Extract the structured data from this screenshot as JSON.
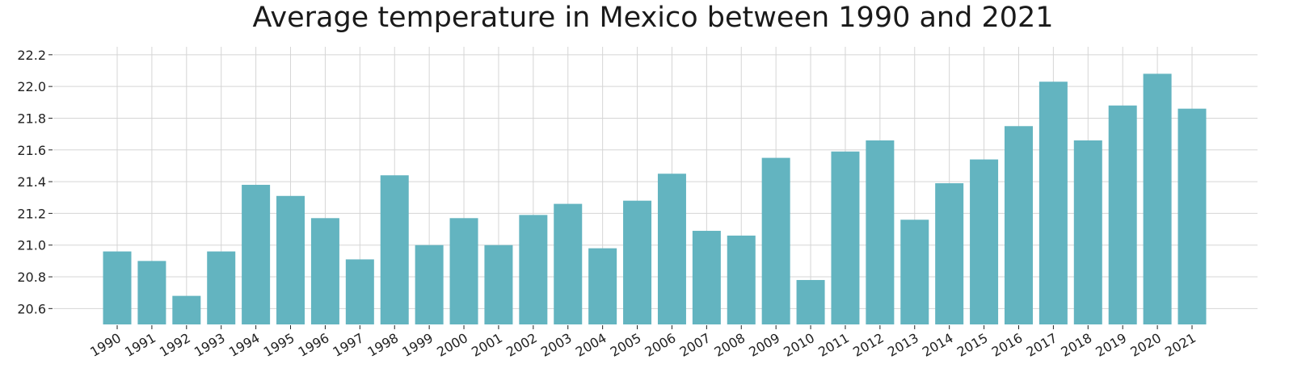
{
  "chart_data": {
    "type": "bar",
    "title": "Average temperature in Mexico between 1990 and 2021",
    "xlabel": "",
    "ylabel": "",
    "categories": [
      "1990",
      "1991",
      "1992",
      "1993",
      "1994",
      "1995",
      "1996",
      "1997",
      "1998",
      "1999",
      "2000",
      "2001",
      "2002",
      "2003",
      "2004",
      "2005",
      "2006",
      "2007",
      "2008",
      "2009",
      "2010",
      "2011",
      "2012",
      "2013",
      "2014",
      "2015",
      "2016",
      "2017",
      "2018",
      "2019",
      "2020",
      "2021"
    ],
    "values": [
      20.96,
      20.9,
      20.68,
      20.96,
      21.38,
      21.31,
      21.17,
      20.91,
      21.44,
      21.0,
      21.17,
      21.0,
      21.19,
      21.26,
      20.98,
      21.28,
      21.45,
      21.09,
      21.06,
      21.55,
      20.78,
      21.59,
      21.66,
      21.16,
      21.39,
      21.54,
      21.75,
      22.03,
      21.66,
      21.88,
      22.08,
      21.86
    ],
    "yticks": [
      "20.6",
      "20.8",
      "21.0",
      "21.2",
      "21.4",
      "21.6",
      "21.8",
      "22.0",
      "22.2"
    ],
    "ylim": [
      20.5,
      22.25
    ],
    "bar_color": "#63b4c0",
    "grid": true,
    "legend": "none"
  }
}
